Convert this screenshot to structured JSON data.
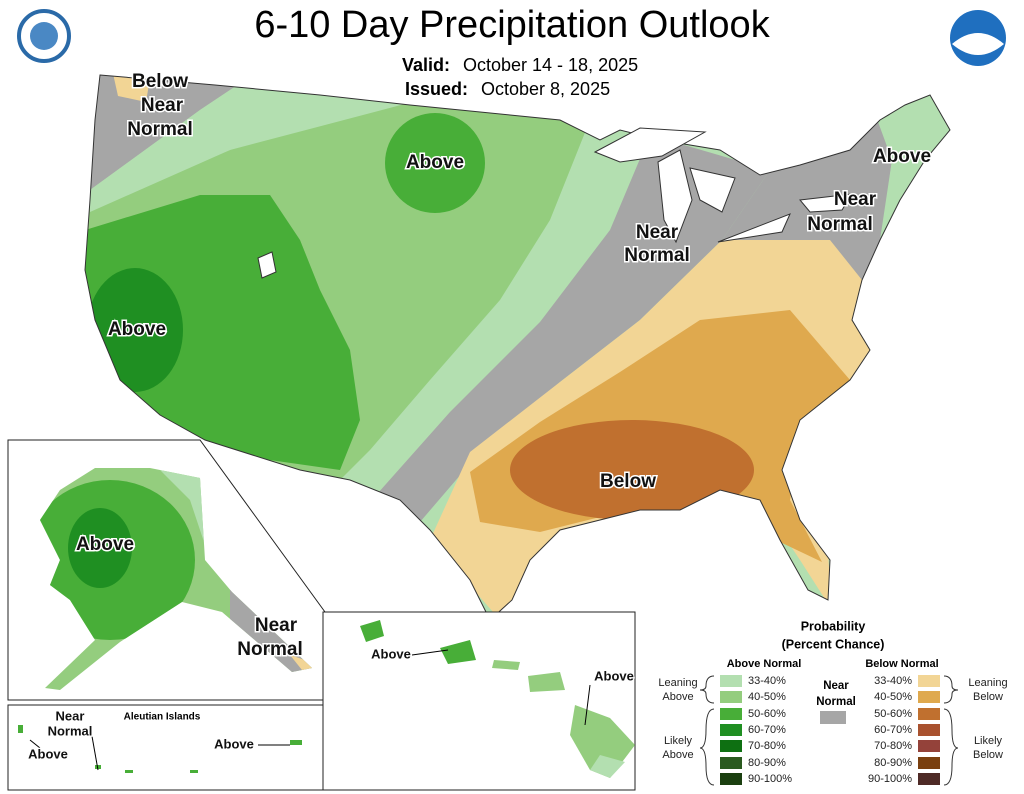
{
  "header": {
    "title": "6-10 Day Precipitation Outlook",
    "valid_label": "Valid:",
    "valid": "October 14 - 18, 2025",
    "issued_label": "Issued:",
    "issued": "October 8, 2025"
  },
  "map_labels": [
    {
      "lines": [
        "Below"
      ]
    },
    {
      "lines": [
        "Near",
        "Normal"
      ]
    },
    {
      "lines": [
        "Above"
      ]
    },
    {
      "lines": [
        "Above"
      ]
    },
    {
      "lines": [
        "Near",
        "Normal"
      ]
    },
    {
      "lines": [
        "Near",
        "Normal"
      ]
    },
    {
      "lines": [
        "Above"
      ]
    },
    {
      "lines": [
        "Below"
      ]
    }
  ],
  "alaska": {
    "labels": [
      {
        "lines": [
          "Above"
        ]
      },
      {
        "lines": [
          "Near",
          "Normal"
        ]
      }
    ]
  },
  "hawaii": {
    "labels": [
      {
        "lines": [
          "Above"
        ]
      },
      {
        "lines": [
          "Above"
        ]
      }
    ]
  },
  "aleutian": {
    "title": "Aleutian Islands",
    "labels": [
      {
        "lines": [
          "Near",
          "Normal"
        ]
      },
      {
        "lines": [
          "Above"
        ]
      },
      {
        "lines": [
          "Above"
        ]
      }
    ]
  },
  "legend": {
    "title": "Probability",
    "subtitle": "(Percent Chance)",
    "above_header": "Above Normal",
    "below_header": "Below Normal",
    "near": {
      "lines": [
        "Near",
        "Normal"
      ],
      "color": "#a6a6a6"
    },
    "above": [
      {
        "label": "33-40%",
        "color": "#b3dfb0"
      },
      {
        "label": "40-50%",
        "color": "#94cd7e"
      },
      {
        "label": "50-60%",
        "color": "#48ae38"
      },
      {
        "label": "60-70%",
        "color": "#1f8f22"
      },
      {
        "label": "70-80%",
        "color": "#0e7012"
      },
      {
        "label": "80-90%",
        "color": "#2a5a1f"
      },
      {
        "label": "90-100%",
        "color": "#1b3f10"
      }
    ],
    "below": [
      {
        "label": "33-40%",
        "color": "#f2d595"
      },
      {
        "label": "40-50%",
        "color": "#dfa94e"
      },
      {
        "label": "50-60%",
        "color": "#c0702f"
      },
      {
        "label": "60-70%",
        "color": "#a9522f"
      },
      {
        "label": "70-80%",
        "color": "#94423a"
      },
      {
        "label": "80-90%",
        "color": "#7a3f0f"
      },
      {
        "label": "90-100%",
        "color": "#4e2a26"
      }
    ],
    "groups": [
      {
        "lines": [
          "Leaning",
          "Above"
        ]
      },
      {
        "lines": [
          "Likely",
          "Above"
        ]
      },
      {
        "lines": [
          "Leaning",
          "Below"
        ]
      },
      {
        "lines": [
          "Likely",
          "Below"
        ]
      }
    ]
  }
}
